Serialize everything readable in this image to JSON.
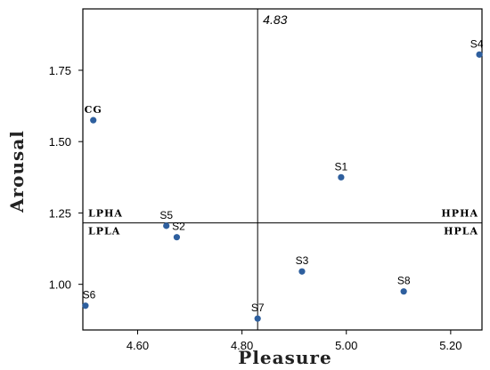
{
  "chart_data": {
    "type": "scatter",
    "xlabel": "Pleasure",
    "ylabel": "Arousal",
    "xlim": [
      4.495,
      5.26
    ],
    "ylim": [
      0.84,
      1.965
    ],
    "x_ticks": [
      4.6,
      4.8,
      5.0,
      5.2
    ],
    "x_tick_labels": [
      "4.60",
      "4.80",
      "5.00",
      "5.20"
    ],
    "y_ticks": [
      1.0,
      1.25,
      1.5,
      1.75
    ],
    "y_tick_labels": [
      "1.00",
      "1.25",
      "1.50",
      "1.75"
    ],
    "vertical_reference": {
      "value": 4.83,
      "label": "4.83"
    },
    "horizontal_reference": {
      "value": 1.215
    },
    "quadrant_labels": {
      "upper_left": "LPHA",
      "lower_left": "LPLA",
      "upper_right": "HPHA",
      "lower_right": "HPLA"
    },
    "points": [
      {
        "label": "CG",
        "x": 4.515,
        "y": 1.575
      },
      {
        "label": "S1",
        "x": 4.99,
        "y": 1.375
      },
      {
        "label": "S2",
        "x": 4.675,
        "y": 1.165
      },
      {
        "label": "S3",
        "x": 4.915,
        "y": 1.045
      },
      {
        "label": "S4",
        "x": 5.255,
        "y": 1.805
      },
      {
        "label": "S5",
        "x": 4.655,
        "y": 1.205
      },
      {
        "label": "S6",
        "x": 4.5,
        "y": 0.925
      },
      {
        "label": "S7",
        "x": 4.83,
        "y": 0.88
      },
      {
        "label": "S8",
        "x": 5.11,
        "y": 0.975
      }
    ],
    "point_color": "#2e5f9e",
    "grid": false
  }
}
